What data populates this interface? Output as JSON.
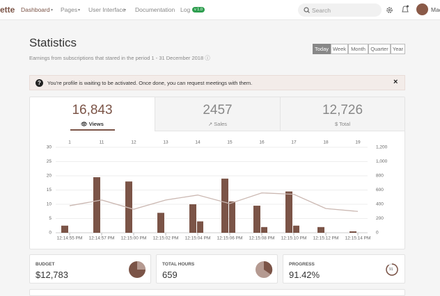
{
  "nav": {
    "brand": "ette",
    "items": [
      "Dashboard",
      "Pages",
      "User Interface",
      "Documentation",
      "Log"
    ],
    "badge": "v 1.0",
    "search": "Search",
    "user": "Mac"
  },
  "header": {
    "title": "Statistics",
    "subtitle": "Earnings from subscriptions that stared in the period 1 - 31 December 2018",
    "periods": [
      "Today",
      "Week",
      "Month",
      "Quarter",
      "Year"
    ]
  },
  "alert": {
    "text": "You're profile is waiting to be activated. Once done, you can request meetings with them.",
    "close": "×"
  },
  "tabs": [
    {
      "value": "16,843",
      "label": "Views"
    },
    {
      "value": "2457",
      "label": "Sales"
    },
    {
      "value": "12,726",
      "label": "Total"
    }
  ],
  "chart_data": {
    "type": "bar",
    "categories": [
      "12:14:55 PM",
      "12:14:57 PM",
      "12:15:00 PM",
      "12:15:02 PM",
      "12:15:04 PM",
      "12:15:06 PM",
      "12:15:08 PM",
      "12:15:10 PM",
      "12:15:12 PM",
      "12:15:14 PM"
    ],
    "top_categories": [
      "1",
      "11",
      "12",
      "13",
      "14",
      "15",
      "16",
      "17",
      "18",
      "19"
    ],
    "series": [
      {
        "color": "#7b5447",
        "values": [
          2.5,
          19.5,
          18,
          7,
          10,
          19,
          9.5,
          14.5,
          2,
          0.5
        ]
      },
      {
        "color": "#7b5447",
        "values": [
          null,
          null,
          null,
          null,
          4,
          11,
          2,
          2.5,
          null,
          null
        ]
      },
      {
        "type": "line",
        "axis": "y2",
        "color": "#cbb8b2",
        "values": [
          380,
          460,
          330,
          460,
          530,
          410,
          560,
          540,
          340,
          300
        ]
      }
    ],
    "ylim": [
      0,
      30
    ],
    "yticks": [
      0,
      5,
      10,
      15,
      20,
      25,
      30
    ],
    "y2lim": [
      0,
      1200
    ],
    "y2ticks": [
      0,
      200,
      400,
      600,
      800,
      {
        "value": 1000,
        "label": "1,000"
      },
      {
        "value": 1200,
        "label": "1,200"
      }
    ],
    "grid": true
  },
  "stats": [
    {
      "label": "BUDGET",
      "value": "$12,783"
    },
    {
      "label": "TOTAL HOURS",
      "value": "659"
    },
    {
      "label": "PROGRESS",
      "value": "91.42%",
      "badge": "91"
    }
  ]
}
